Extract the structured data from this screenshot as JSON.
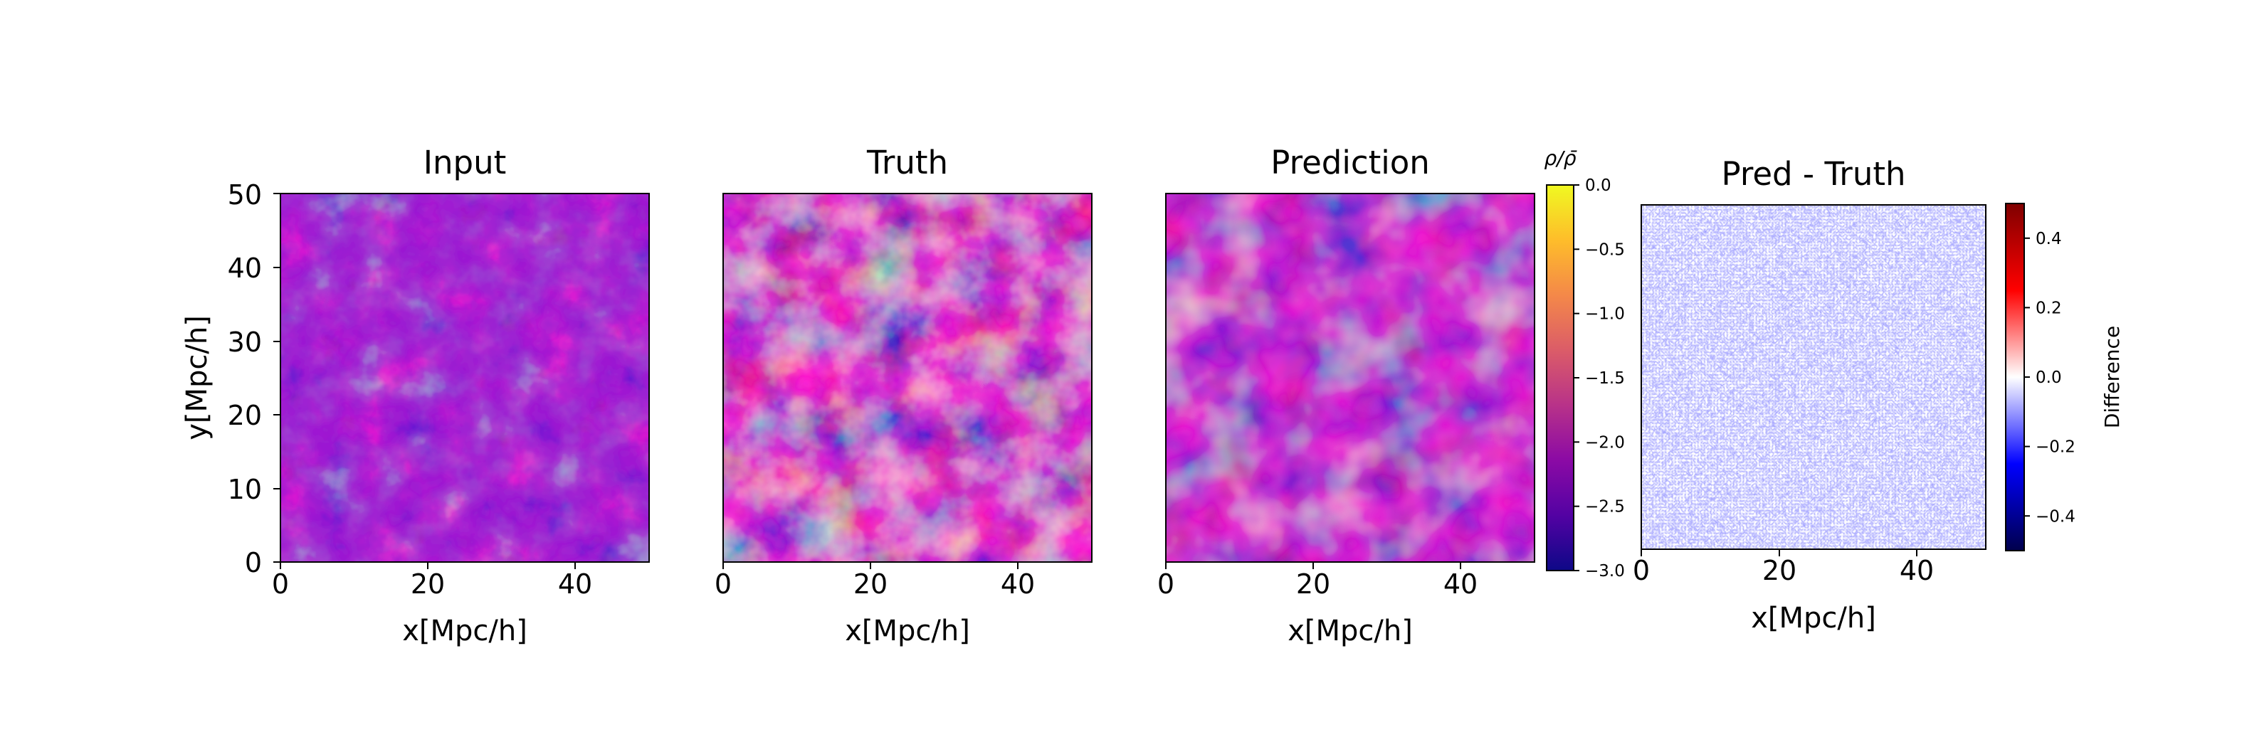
{
  "colors": {
    "background": "#ffffff",
    "plasma": [
      "#0d0887",
      "#5302a3",
      "#8b0aa5",
      "#b83289",
      "#db5c68",
      "#f48849",
      "#febd2a",
      "#f0f921"
    ],
    "seismic": [
      "#00004c",
      "#0000ff",
      "#ffffff",
      "#ff0000",
      "#7f0000"
    ]
  },
  "chart_data": [
    {
      "type": "heatmap",
      "title": "Input",
      "xlabel": "x[Mpc/h]",
      "ylabel": "y[Mpc/h]",
      "xlim": [
        0,
        50
      ],
      "ylim": [
        0,
        50
      ],
      "xticks": [
        "0",
        "20",
        "40"
      ],
      "yticks": [
        "0",
        "10",
        "20",
        "30",
        "40",
        "50"
      ],
      "colormap": "plasma",
      "grid": false
    },
    {
      "type": "heatmap",
      "title": "Truth",
      "xlabel": "x[Mpc/h]",
      "xlim": [
        0,
        50
      ],
      "ylim": [
        0,
        50
      ],
      "xticks": [
        "0",
        "20",
        "40"
      ],
      "colormap": "plasma",
      "grid": false
    },
    {
      "type": "heatmap",
      "title": "Prediction",
      "xlabel": "x[Mpc/h]",
      "xlim": [
        0,
        50
      ],
      "ylim": [
        0,
        50
      ],
      "xticks": [
        "0",
        "20",
        "40"
      ],
      "colormap": "plasma",
      "grid": false,
      "colorbar": {
        "label": "ρ/ρ̄",
        "range": [
          -3.0,
          0.0
        ],
        "ticks": [
          "0.0",
          "−0.5",
          "−1.0",
          "−1.5",
          "−2.0",
          "−2.5",
          "−3.0"
        ]
      }
    },
    {
      "type": "heatmap",
      "title": "Pred - Truth",
      "xlabel": "x[Mpc/h]",
      "xlim": [
        0,
        50
      ],
      "ylim": [
        0,
        50
      ],
      "xticks": [
        "0",
        "20",
        "40"
      ],
      "colormap": "seismic",
      "grid": false,
      "colorbar": {
        "label": "Difference",
        "range": [
          -0.5,
          0.5
        ],
        "ticks": [
          "0.4",
          "0.2",
          "0.0",
          "−0.2",
          "−0.4"
        ]
      }
    }
  ]
}
